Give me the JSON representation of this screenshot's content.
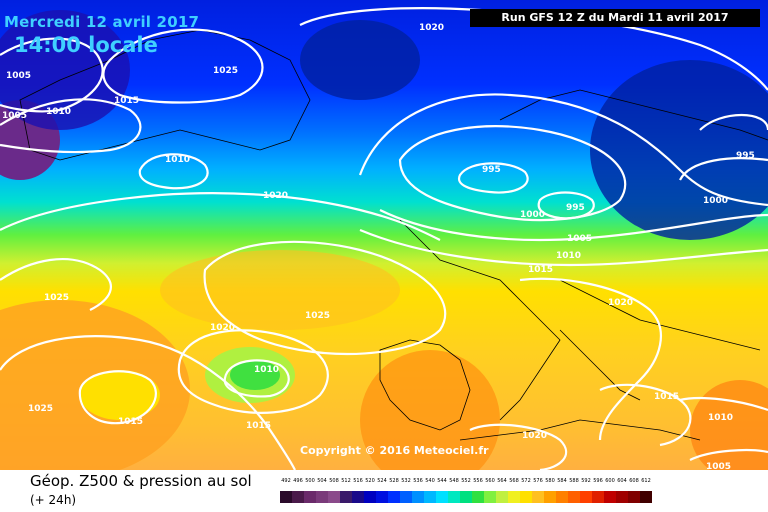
{
  "header": {
    "date": "Mercredi 12 avril 2017",
    "time": "14:00 locale",
    "run": "Run GFS 12 Z du Mardi 11 avril 2017"
  },
  "copyright": "Copyright © 2016 Meteociel.fr",
  "footer": {
    "title": "Géop. Z500 & pression au sol",
    "subtitle": "(+ 24h)"
  },
  "scale": {
    "labels": [
      "492",
      "496",
      "500",
      "504",
      "508",
      "512",
      "516",
      "520",
      "524",
      "528",
      "532",
      "536",
      "540",
      "544",
      "548",
      "552",
      "556",
      "560",
      "564",
      "568",
      "572",
      "576",
      "580",
      "584",
      "588",
      "592",
      "596",
      "600",
      "604",
      "608",
      "612"
    ],
    "colors": [
      "#2a0a2a",
      "#4a1a4a",
      "#6a2a6a",
      "#7a3a7a",
      "#8a4a8a",
      "#3a1a6a",
      "#1a0a8a",
      "#0000c0",
      "#0010e0",
      "#0030ff",
      "#0060ff",
      "#0090ff",
      "#00b8ff",
      "#00e0ff",
      "#00e8c0",
      "#00e080",
      "#30e040",
      "#80f040",
      "#c0f040",
      "#f0f020",
      "#ffe000",
      "#ffc020",
      "#ffa000",
      "#ff8000",
      "#ff6000",
      "#ff4000",
      "#e02000",
      "#c00000",
      "#a00000",
      "#800000",
      "#400000"
    ]
  },
  "pressure_labels": [
    "1005",
    "1005",
    "1010",
    "1010",
    "1015",
    "1020",
    "1025",
    "1020",
    "1025",
    "995",
    "995",
    "1000",
    "1005",
    "1010",
    "1015",
    "1020",
    "995",
    "1000",
    "1025",
    "1020",
    "1025",
    "1010",
    "1015",
    "1015",
    "1025",
    "1015",
    "1020",
    "1010",
    "1005"
  ]
}
